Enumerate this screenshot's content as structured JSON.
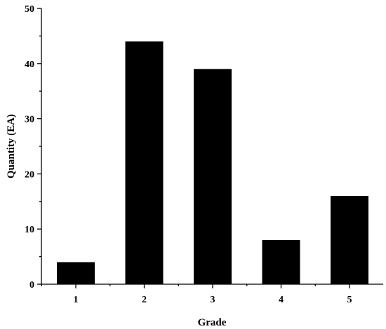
{
  "chart_data": {
    "type": "bar",
    "categories": [
      "1",
      "2",
      "3",
      "4",
      "5"
    ],
    "values": [
      4,
      44,
      39,
      8,
      16
    ],
    "xlabel": "Grade",
    "ylabel": "Quantity (EA)",
    "ylim": [
      0,
      50
    ],
    "yticks": [
      0,
      10,
      20,
      30,
      40,
      50
    ],
    "bar_color": "#000000",
    "grid": false,
    "legend": "none"
  }
}
